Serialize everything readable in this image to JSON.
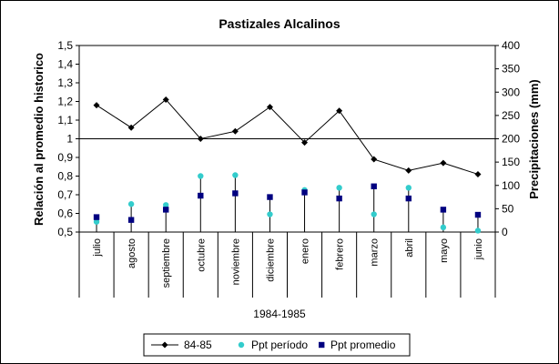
{
  "chart_data": {
    "type": "line",
    "title": "Pastizales Alcalinos",
    "xlabel": "1984-1985",
    "ylabel_left": "Relación al promedio historico",
    "ylabel_right": "Precipitaciones (mm)",
    "categories": [
      "julio",
      "agosto",
      "septiembre",
      "octubre",
      "noviembre",
      "diciembre",
      "enero",
      "febrero",
      "marzo",
      "abril",
      "mayo",
      "junio"
    ],
    "y_left": {
      "min": 0.5,
      "max": 1.5,
      "step": 0.1,
      "ticks": [
        "0,5",
        "0,6",
        "0,7",
        "0,8",
        "0,9",
        "1",
        "1,1",
        "1,2",
        "1,3",
        "1,4",
        "1,5"
      ]
    },
    "y_right": {
      "min": 0,
      "max": 400,
      "step": 50,
      "ticks": [
        "0",
        "50",
        "100",
        "150",
        "200",
        "250",
        "300",
        "350",
        "400"
      ]
    },
    "reference_line": 1.0,
    "gridlines": false,
    "legend_position": "bottom",
    "series": [
      {
        "name": "84-85",
        "axis": "left",
        "kind": "line",
        "marker": "diamond",
        "color": "#000000",
        "values": [
          1.18,
          1.06,
          1.21,
          1.0,
          1.04,
          1.17,
          0.98,
          1.15,
          0.89,
          0.83,
          0.87,
          0.81
        ]
      },
      {
        "name": "Ppt período",
        "axis": "right",
        "kind": "scatter",
        "marker": "circle",
        "color": "#33cccc",
        "values": [
          22,
          60,
          58,
          120,
          122,
          38,
          90,
          95,
          38,
          95,
          10,
          3
        ]
      },
      {
        "name": "Ppt promedio",
        "axis": "right",
        "kind": "scatter",
        "marker": "square",
        "color": "#000080",
        "values": [
          32,
          26,
          48,
          78,
          83,
          75,
          85,
          72,
          98,
          72,
          48,
          37
        ]
      }
    ]
  }
}
